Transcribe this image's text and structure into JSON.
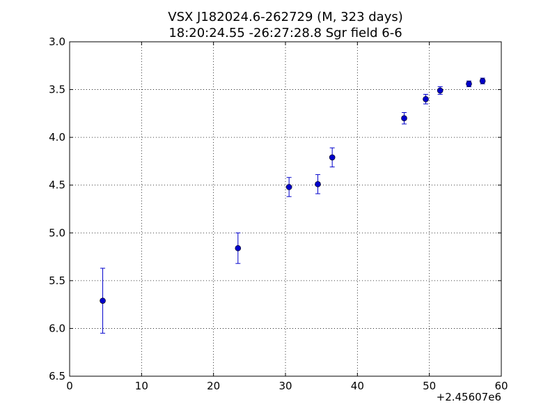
{
  "chart_data": {
    "type": "scatter",
    "title": "VSX J182024.6-262729  (M, 323 days)",
    "subtitle": "18:20:24.55 -26:27:28.8 Sgr field 6-6",
    "xlabel": "",
    "ylabel": "",
    "x_offset_label": "+2.45607e6",
    "xlim": [
      0,
      60
    ],
    "ylim": [
      6.5,
      3.0
    ],
    "y_inverted": true,
    "grid": true,
    "x_ticks": [
      0,
      10,
      20,
      30,
      40,
      50,
      60
    ],
    "x_tick_labels": [
      "0",
      "10",
      "20",
      "30",
      "40",
      "50",
      "60"
    ],
    "y_ticks": [
      3.0,
      3.5,
      4.0,
      4.5,
      5.0,
      5.5,
      6.0,
      6.5
    ],
    "y_tick_labels": [
      "3.0",
      "3.5",
      "4.0",
      "4.5",
      "5.0",
      "5.5",
      "6.0",
      "6.5"
    ],
    "marker_color": "#0000cc",
    "points": [
      {
        "x": 4.6,
        "y": 5.71,
        "err": 0.34
      },
      {
        "x": 23.4,
        "y": 5.16,
        "err": 0.16
      },
      {
        "x": 30.5,
        "y": 4.52,
        "err": 0.1
      },
      {
        "x": 34.5,
        "y": 4.49,
        "err": 0.1
      },
      {
        "x": 36.5,
        "y": 4.21,
        "err": 0.1
      },
      {
        "x": 46.5,
        "y": 3.8,
        "err": 0.06
      },
      {
        "x": 49.5,
        "y": 3.6,
        "err": 0.05
      },
      {
        "x": 51.5,
        "y": 3.51,
        "err": 0.04
      },
      {
        "x": 55.5,
        "y": 3.44,
        "err": 0.03
      },
      {
        "x": 57.4,
        "y": 3.41,
        "err": 0.03
      }
    ]
  }
}
